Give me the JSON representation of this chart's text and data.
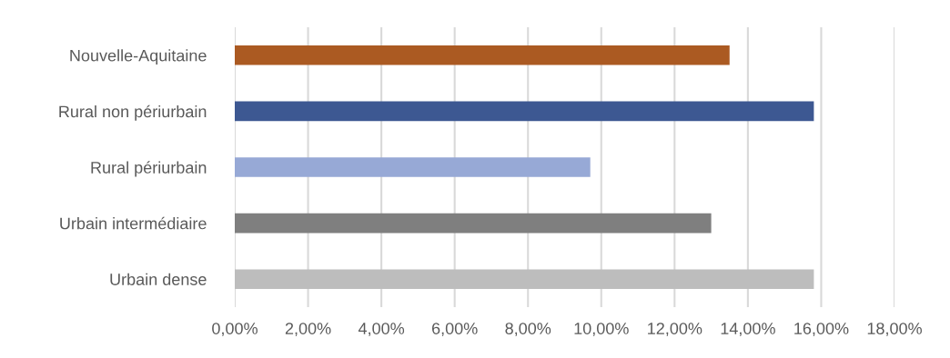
{
  "chart_data": {
    "type": "bar",
    "orientation": "horizontal",
    "categories": [
      "Nouvelle-Aquitaine",
      "Rural non périurbain",
      "Rural périurbain",
      "Urbain intermédiaire",
      "Urbain dense"
    ],
    "values": [
      13.5,
      15.8,
      9.7,
      13.0,
      15.8
    ],
    "colors": [
      "#ab5a22",
      "#3d5892",
      "#97a9d6",
      "#7f7f7f",
      "#bdbdbd"
    ],
    "xlim": [
      0,
      18
    ],
    "xticks": [
      {
        "value": 0,
        "label": "0,00%"
      },
      {
        "value": 2,
        "label": "2,00%"
      },
      {
        "value": 4,
        "label": "4,00%"
      },
      {
        "value": 6,
        "label": "6,00%"
      },
      {
        "value": 8,
        "label": "8,00%"
      },
      {
        "value": 10,
        "label": "10,00%"
      },
      {
        "value": 12,
        "label": "12,00%"
      },
      {
        "value": 14,
        "label": "14,00%"
      },
      {
        "value": 16,
        "label": "16,00%"
      },
      {
        "value": 18,
        "label": "18,00%"
      }
    ],
    "grid": "x",
    "legend": false
  }
}
